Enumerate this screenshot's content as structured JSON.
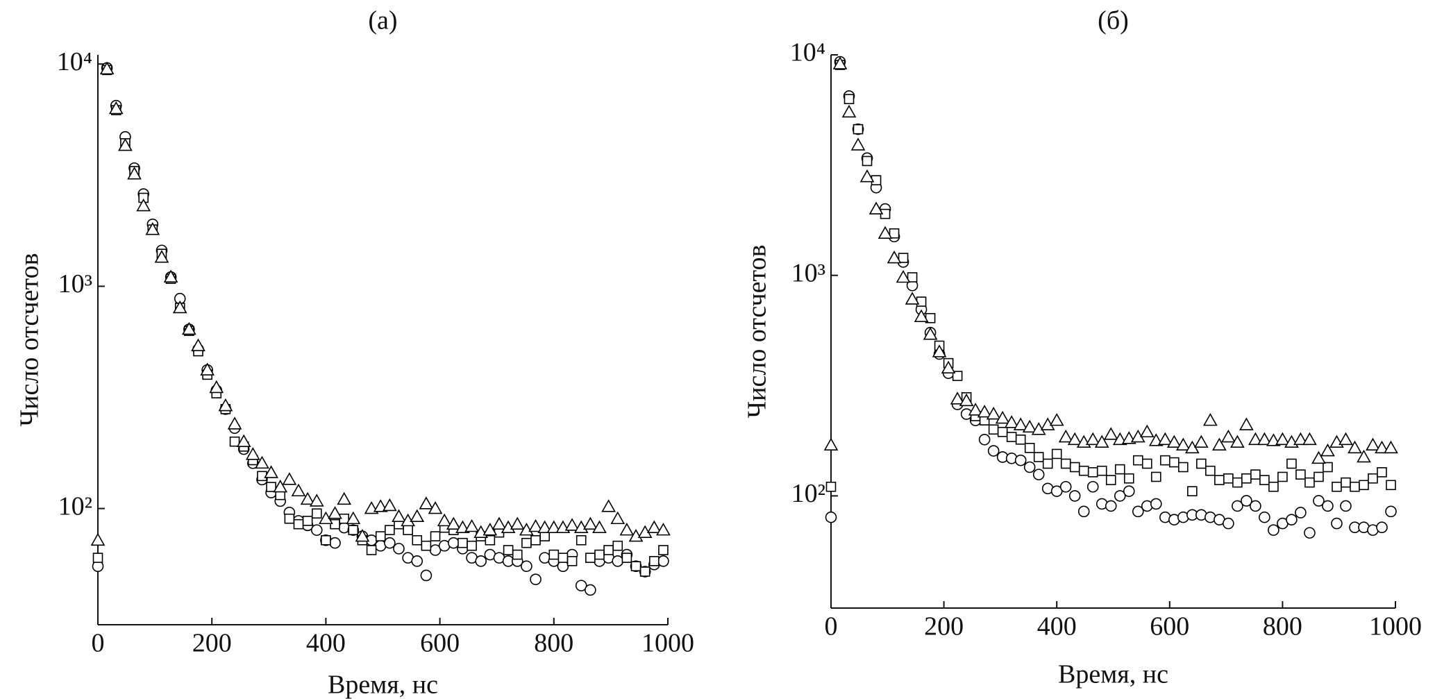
{
  "chart_data": [
    {
      "type": "scatter",
      "title": "(a)",
      "x_label": "Время, нс",
      "y_label": "Число отсчетов",
      "log_y": true,
      "xlim": [
        0,
        1000
      ],
      "xticks": [
        0,
        200,
        400,
        600,
        800,
        1000
      ],
      "ylim": [
        30,
        11000
      ],
      "yticks": [
        {
          "value": 100,
          "label": "10²"
        },
        {
          "value": 1000,
          "label": "10³"
        },
        {
          "value": 10000,
          "label": "10⁴"
        }
      ],
      "x": [
        0,
        16,
        32,
        48,
        64,
        80,
        96,
        112,
        128,
        144,
        160,
        176,
        192,
        208,
        224,
        240,
        256,
        272,
        288,
        304,
        320,
        336,
        352,
        368,
        384,
        400,
        416,
        432,
        448,
        464,
        480,
        496,
        512,
        528,
        544,
        560,
        576,
        592,
        608,
        624,
        640,
        656,
        672,
        688,
        704,
        720,
        736,
        752,
        768,
        784,
        800,
        816,
        832,
        848,
        864,
        880,
        896,
        912,
        928,
        944,
        960,
        976,
        992
      ],
      "series": [
        {
          "marker": "circle",
          "color": "#000000",
          "values": [
            55,
            9600,
            6500,
            4700,
            3400,
            2600,
            1900,
            1450,
            1100,
            880,
            640,
            520,
            420,
            340,
            280,
            230,
            185,
            160,
            135,
            118,
            108,
            96,
            88,
            84,
            80,
            72,
            70,
            82,
            80,
            75,
            72,
            68,
            70,
            66,
            60,
            58,
            50,
            65,
            68,
            70,
            66,
            60,
            58,
            62,
            60,
            58,
            58,
            55,
            48,
            60,
            58,
            55,
            62,
            45,
            43,
            58,
            60,
            58,
            62,
            55,
            52,
            56,
            58
          ]
        },
        {
          "marker": "square",
          "color": "#000000",
          "values": [
            60,
            9400,
            6200,
            4400,
            3300,
            2500,
            1800,
            1400,
            1080,
            800,
            630,
            510,
            400,
            330,
            280,
            200,
            190,
            165,
            140,
            125,
            115,
            90,
            85,
            88,
            95,
            72,
            85,
            90,
            80,
            72,
            65,
            75,
            80,
            85,
            80,
            72,
            68,
            75,
            82,
            80,
            70,
            68,
            75,
            72,
            78,
            65,
            62,
            70,
            72,
            75,
            62,
            60,
            58,
            72,
            60,
            62,
            65,
            68,
            60,
            55,
            52,
            58,
            65
          ]
        },
        {
          "marker": "triangle",
          "color": "#000000",
          "values": [
            72,
            9500,
            6300,
            4300,
            3200,
            2300,
            1800,
            1350,
            1100,
            800,
            640,
            540,
            420,
            350,
            290,
            240,
            200,
            175,
            160,
            145,
            125,
            135,
            120,
            110,
            108,
            90,
            95,
            110,
            90,
            75,
            100,
            102,
            103,
            92,
            88,
            92,
            105,
            100,
            88,
            85,
            82,
            83,
            78,
            80,
            85,
            82,
            85,
            80,
            83,
            82,
            82,
            82,
            84,
            82,
            85,
            82,
            102,
            90,
            80,
            75,
            78,
            82,
            80
          ]
        }
      ]
    },
    {
      "type": "scatter",
      "title": "(б)",
      "x_label": "Время, нс",
      "y_label": "Число отсчетов",
      "log_y": true,
      "xlim": [
        0,
        1000
      ],
      "xticks": [
        0,
        200,
        400,
        600,
        800,
        1000
      ],
      "ylim": [
        31,
        10000
      ],
      "yticks": [
        {
          "value": 100,
          "label": "10²"
        },
        {
          "value": 1000,
          "label": "10³"
        },
        {
          "value": 10000,
          "label": "10⁴"
        }
      ],
      "x": [
        0,
        16,
        32,
        48,
        64,
        80,
        96,
        112,
        128,
        144,
        160,
        176,
        192,
        208,
        224,
        240,
        256,
        272,
        288,
        304,
        320,
        336,
        352,
        368,
        384,
        400,
        416,
        432,
        448,
        464,
        480,
        496,
        512,
        528,
        544,
        560,
        576,
        592,
        608,
        624,
        640,
        656,
        672,
        688,
        704,
        720,
        736,
        752,
        768,
        784,
        800,
        816,
        832,
        848,
        864,
        880,
        896,
        912,
        928,
        944,
        960,
        976,
        992
      ],
      "series": [
        {
          "marker": "circle",
          "color": "#000000",
          "values": [
            80,
            9300,
            6500,
            4600,
            3400,
            2500,
            2000,
            1500,
            1150,
            900,
            700,
            550,
            440,
            360,
            260,
            235,
            220,
            180,
            160,
            150,
            148,
            145,
            135,
            125,
            108,
            105,
            110,
            100,
            85,
            110,
            92,
            90,
            100,
            105,
            85,
            90,
            92,
            80,
            78,
            80,
            82,
            82,
            80,
            78,
            75,
            90,
            95,
            90,
            80,
            70,
            75,
            78,
            84,
            68,
            95,
            90,
            75,
            90,
            72,
            72,
            70,
            72,
            85
          ]
        },
        {
          "marker": "square",
          "color": "#000000",
          "values": [
            110,
            9000,
            6300,
            4600,
            3300,
            2700,
            1900,
            1550,
            1200,
            980,
            760,
            640,
            480,
            400,
            350,
            280,
            230,
            220,
            200,
            195,
            185,
            180,
            165,
            150,
            140,
            155,
            140,
            135,
            130,
            128,
            130,
            118,
            132,
            120,
            145,
            140,
            122,
            145,
            142,
            135,
            105,
            140,
            130,
            118,
            120,
            115,
            120,
            125,
            118,
            110,
            122,
            140,
            125,
            115,
            122,
            135,
            110,
            115,
            110,
            112,
            120,
            128,
            112
          ]
        },
        {
          "marker": "triangle",
          "color": "#000000",
          "values": [
            170,
            9100,
            5500,
            3900,
            2800,
            2000,
            1550,
            1200,
            980,
            780,
            650,
            540,
            450,
            380,
            275,
            270,
            245,
            240,
            235,
            225,
            215,
            210,
            205,
            200,
            210,
            220,
            185,
            180,
            175,
            180,
            175,
            190,
            180,
            182,
            185,
            195,
            178,
            180,
            175,
            170,
            165,
            175,
            220,
            170,
            185,
            175,
            210,
            180,
            180,
            178,
            180,
            175,
            180,
            180,
            148,
            160,
            175,
            180,
            165,
            150,
            170,
            165,
            165
          ]
        }
      ]
    }
  ]
}
